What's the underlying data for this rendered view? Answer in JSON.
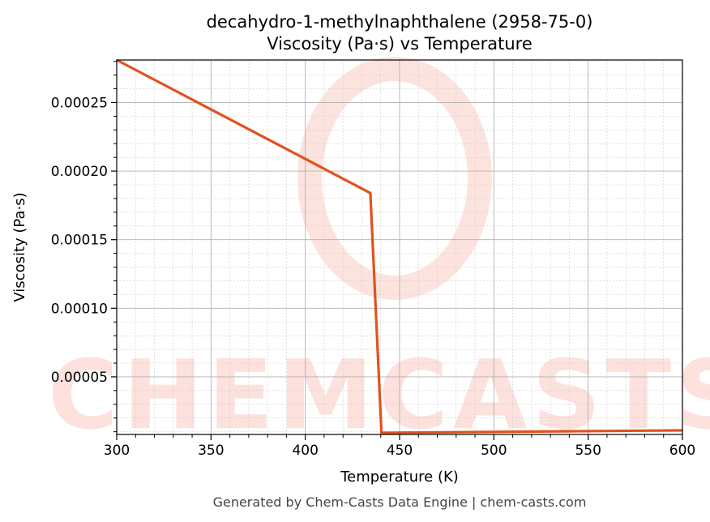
{
  "chart_data": {
    "type": "line",
    "title": "decahydro-1-methylnaphthalene (2958-75-0)",
    "subtitle": "Viscosity (Pa·s) vs Temperature",
    "xlabel": "Temperature (K)",
    "ylabel": "Viscosity (Pa·s)",
    "xlim": [
      300,
      600
    ],
    "ylim": [
      8e-06,
      0.000281
    ],
    "xticks": [
      300,
      350,
      400,
      450,
      500,
      550,
      600
    ],
    "xtick_labels": [
      "300",
      "350",
      "400",
      "450",
      "500",
      "550",
      "600"
    ],
    "yticks": [
      5e-05,
      0.0001,
      0.00015,
      0.0002,
      0.00025
    ],
    "ytick_labels": [
      "0.00005",
      "0.00010",
      "0.00015",
      "0.00020",
      "0.00025"
    ],
    "grid": true,
    "series": [
      {
        "name": "Viscosity",
        "color": "#e0521f",
        "x": [
          300,
          434.5,
          440.4,
          600
        ],
        "y": [
          0.000281,
          0.000184,
          9.2e-06,
          1.1e-05
        ]
      }
    ],
    "watermark": "CHEMCASTS",
    "footer": "Generated by Chem-Casts Data Engine | chem-casts.com"
  }
}
